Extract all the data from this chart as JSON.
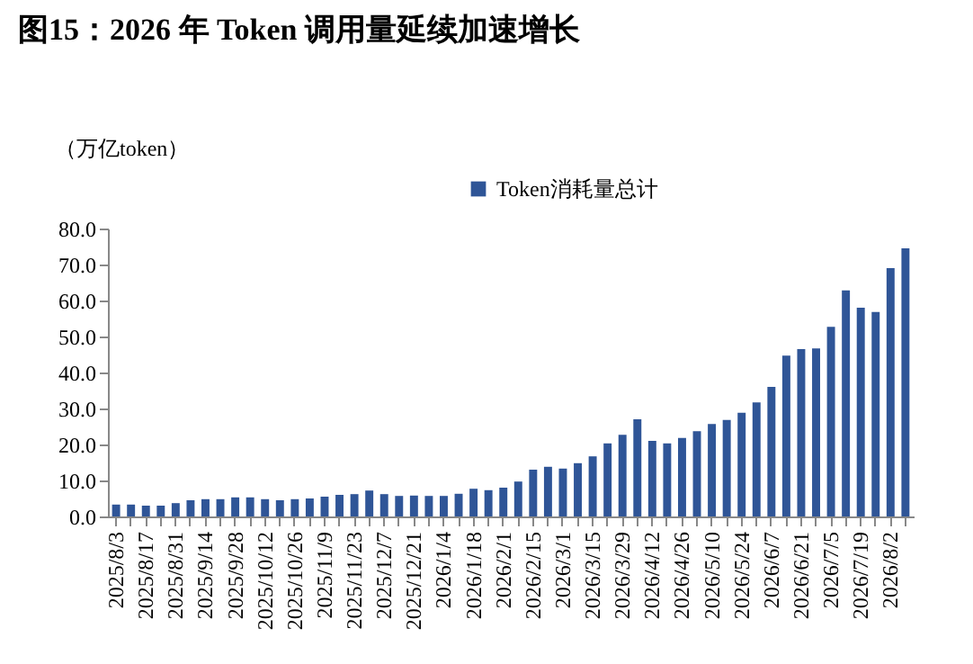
{
  "chart_data": {
    "type": "bar",
    "title": "图15：2026 年 Token 调用量延续加速增长",
    "ylabel": "（万亿token）",
    "categories": [
      "2025/8/3",
      null,
      "2025/8/17",
      null,
      "2025/8/31",
      null,
      "2025/9/14",
      null,
      "2025/9/28",
      null,
      "2025/10/12",
      null,
      "2025/10/26",
      null,
      "2025/11/9",
      null,
      "2025/11/23",
      null,
      "2025/12/7",
      null,
      "2025/12/21",
      null,
      "2026/1/4",
      null,
      "2026/1/18",
      null,
      "2026/2/1",
      null,
      "2026/2/15",
      null,
      "2026/3/1",
      null,
      "2026/3/15",
      null,
      "2026/3/29",
      null,
      "2026/4/12",
      null,
      "2026/4/26",
      null,
      "2026/5/10",
      null,
      "2026/5/24",
      null,
      "2026/6/7",
      null,
      "2026/6/21",
      null,
      "2026/7/5",
      null,
      "2026/7/19",
      null,
      "2026/8/2",
      null
    ],
    "series": [
      {
        "name": "Token消耗量总计",
        "color": "#2f5597",
        "values": [
          3.3,
          3.3,
          3.0,
          3.0,
          3.7,
          4.5,
          4.8,
          4.8,
          5.3,
          5.3,
          4.8,
          4.5,
          4.8,
          5.0,
          5.5,
          6.0,
          6.2,
          7.2,
          6.2,
          5.7,
          5.8,
          5.7,
          5.7,
          6.3,
          7.7,
          7.3,
          8.0,
          9.7,
          13.0,
          13.8,
          13.3,
          14.8,
          16.7,
          20.3,
          22.7,
          27.0,
          21.0,
          20.3,
          21.8,
          23.7,
          25.7,
          26.8,
          28.8,
          31.7,
          36.0,
          44.7,
          46.5,
          46.7,
          52.7,
          62.8,
          58.0,
          56.8,
          69.0,
          74.5
        ]
      }
    ],
    "ylim": [
      0,
      80
    ],
    "yticks": [
      {
        "value": 0,
        "label": "0.0"
      },
      {
        "value": 10,
        "label": "10.0"
      },
      {
        "value": 20,
        "label": "20.0"
      },
      {
        "value": 30,
        "label": "30.0"
      },
      {
        "value": 40,
        "label": "40.0"
      },
      {
        "value": 50,
        "label": "50.0"
      },
      {
        "value": 60,
        "label": "60.0"
      },
      {
        "value": 70,
        "label": "70.0"
      },
      {
        "value": 80,
        "label": "80.0"
      }
    ],
    "legend": "top"
  }
}
